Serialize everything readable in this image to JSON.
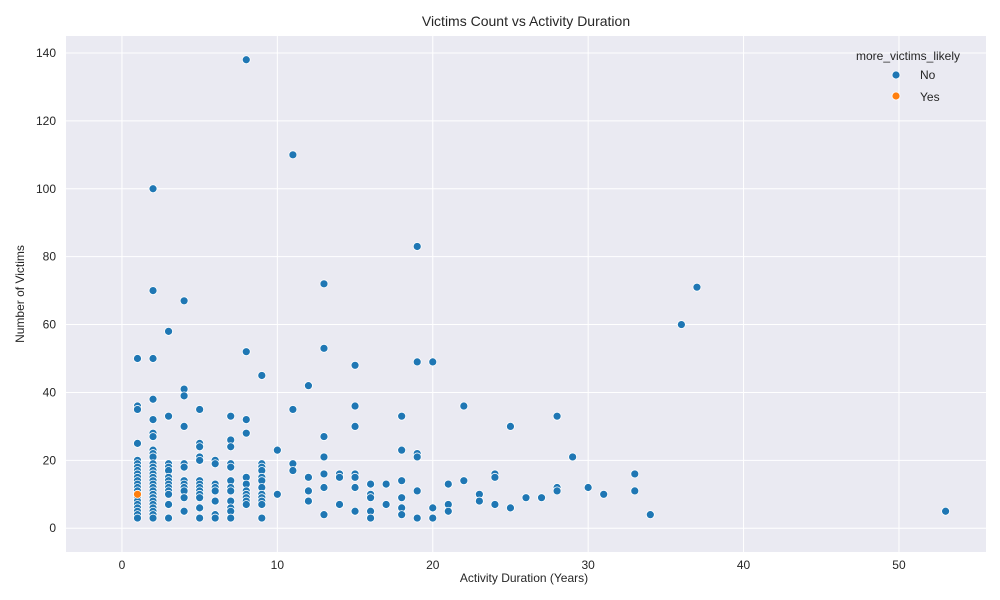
{
  "chart_data": {
    "type": "scatter",
    "title": "Victims Count vs Activity Duration",
    "xlabel": "Activity Duration (Years)",
    "ylabel": "Number of Victims",
    "xlim": [
      -3.6,
      55.6
    ],
    "ylim": [
      -7,
      145
    ],
    "xticks": [
      0,
      10,
      20,
      30,
      40,
      50
    ],
    "yticks": [
      0,
      20,
      40,
      60,
      80,
      100,
      120,
      140
    ],
    "grid": true,
    "legend": {
      "title": "more_victims_likely",
      "placement": "top-right"
    },
    "series": [
      {
        "name": "No",
        "color": "#1f77b4",
        "points": [
          [
            8,
            138
          ],
          [
            11,
            110
          ],
          [
            2,
            100
          ],
          [
            19,
            83
          ],
          [
            13,
            72
          ],
          [
            37,
            71
          ],
          [
            2,
            70
          ],
          [
            4,
            67
          ],
          [
            36,
            60
          ],
          [
            3,
            58
          ],
          [
            13,
            53
          ],
          [
            8,
            52
          ],
          [
            1,
            50
          ],
          [
            2,
            50
          ],
          [
            19,
            49
          ],
          [
            20,
            49
          ],
          [
            15,
            48
          ],
          [
            9,
            45
          ],
          [
            12,
            42
          ],
          [
            4,
            41
          ],
          [
            4,
            39
          ],
          [
            2,
            38
          ],
          [
            22,
            36
          ],
          [
            15,
            36
          ],
          [
            1,
            36
          ],
          [
            1,
            35
          ],
          [
            5,
            35
          ],
          [
            11,
            35
          ],
          [
            7,
            33
          ],
          [
            18,
            33
          ],
          [
            28,
            33
          ],
          [
            3,
            33
          ],
          [
            2,
            32
          ],
          [
            8,
            32
          ],
          [
            4,
            30
          ],
          [
            15,
            30
          ],
          [
            25,
            30
          ],
          [
            2,
            28
          ],
          [
            8,
            28
          ],
          [
            2,
            27
          ],
          [
            13,
            27
          ],
          [
            7,
            26
          ],
          [
            1,
            25
          ],
          [
            5,
            25
          ],
          [
            5,
            24
          ],
          [
            7,
            24
          ],
          [
            10,
            23
          ],
          [
            18,
            23
          ],
          [
            2,
            23
          ],
          [
            19,
            22
          ],
          [
            2,
            22
          ],
          [
            2,
            21
          ],
          [
            5,
            21
          ],
          [
            13,
            21
          ],
          [
            19,
            21
          ],
          [
            29,
            21
          ],
          [
            1,
            20
          ],
          [
            5,
            20
          ],
          [
            6,
            20
          ],
          [
            1,
            19
          ],
          [
            2,
            19
          ],
          [
            3,
            19
          ],
          [
            4,
            19
          ],
          [
            6,
            19
          ],
          [
            7,
            19
          ],
          [
            9,
            19
          ],
          [
            11,
            19
          ],
          [
            1,
            18
          ],
          [
            2,
            18
          ],
          [
            3,
            18
          ],
          [
            4,
            18
          ],
          [
            7,
            18
          ],
          [
            9,
            18
          ],
          [
            1,
            17
          ],
          [
            2,
            17
          ],
          [
            3,
            17
          ],
          [
            9,
            17
          ],
          [
            11,
            17
          ],
          [
            1,
            16
          ],
          [
            2,
            16
          ],
          [
            13,
            16
          ],
          [
            14,
            16
          ],
          [
            15,
            16
          ],
          [
            24,
            16
          ],
          [
            33,
            16
          ],
          [
            1,
            15
          ],
          [
            2,
            15
          ],
          [
            3,
            15
          ],
          [
            8,
            15
          ],
          [
            9,
            15
          ],
          [
            12,
            15
          ],
          [
            14,
            15
          ],
          [
            15,
            15
          ],
          [
            24,
            15
          ],
          [
            1,
            14
          ],
          [
            2,
            14
          ],
          [
            3,
            14
          ],
          [
            4,
            14
          ],
          [
            5,
            14
          ],
          [
            7,
            14
          ],
          [
            9,
            14
          ],
          [
            18,
            14
          ],
          [
            22,
            14
          ],
          [
            1,
            13
          ],
          [
            2,
            13
          ],
          [
            3,
            13
          ],
          [
            4,
            13
          ],
          [
            5,
            13
          ],
          [
            6,
            13
          ],
          [
            8,
            13
          ],
          [
            16,
            13
          ],
          [
            17,
            13
          ],
          [
            21,
            13
          ],
          [
            1,
            12
          ],
          [
            2,
            12
          ],
          [
            3,
            12
          ],
          [
            4,
            12
          ],
          [
            5,
            12
          ],
          [
            6,
            12
          ],
          [
            7,
            12
          ],
          [
            9,
            12
          ],
          [
            13,
            12
          ],
          [
            15,
            12
          ],
          [
            28,
            12
          ],
          [
            30,
            12
          ],
          [
            1,
            11
          ],
          [
            2,
            11
          ],
          [
            3,
            11
          ],
          [
            4,
            11
          ],
          [
            5,
            11
          ],
          [
            6,
            11
          ],
          [
            7,
            11
          ],
          [
            8,
            11
          ],
          [
            12,
            11
          ],
          [
            19,
            11
          ],
          [
            28,
            11
          ],
          [
            33,
            11
          ],
          [
            1,
            10
          ],
          [
            2,
            10
          ],
          [
            3,
            10
          ],
          [
            5,
            10
          ],
          [
            8,
            10
          ],
          [
            9,
            10
          ],
          [
            10,
            10
          ],
          [
            16,
            10
          ],
          [
            23,
            10
          ],
          [
            31,
            10
          ],
          [
            1,
            9
          ],
          [
            2,
            9
          ],
          [
            4,
            9
          ],
          [
            5,
            9
          ],
          [
            8,
            9
          ],
          [
            9,
            9
          ],
          [
            16,
            9
          ],
          [
            18,
            9
          ],
          [
            26,
            9
          ],
          [
            27,
            9
          ],
          [
            1,
            8
          ],
          [
            2,
            8
          ],
          [
            6,
            8
          ],
          [
            7,
            8
          ],
          [
            8,
            8
          ],
          [
            9,
            8
          ],
          [
            12,
            8
          ],
          [
            23,
            8
          ],
          [
            1,
            7
          ],
          [
            2,
            7
          ],
          [
            3,
            7
          ],
          [
            8,
            7
          ],
          [
            9,
            7
          ],
          [
            14,
            7
          ],
          [
            17,
            7
          ],
          [
            21,
            7
          ],
          [
            24,
            7
          ],
          [
            1,
            6
          ],
          [
            2,
            6
          ],
          [
            5,
            6
          ],
          [
            7,
            6
          ],
          [
            18,
            6
          ],
          [
            20,
            6
          ],
          [
            25,
            6
          ],
          [
            1,
            5
          ],
          [
            2,
            5
          ],
          [
            4,
            5
          ],
          [
            7,
            5
          ],
          [
            15,
            5
          ],
          [
            16,
            5
          ],
          [
            21,
            5
          ],
          [
            53,
            5
          ],
          [
            1,
            4
          ],
          [
            2,
            4
          ],
          [
            6,
            4
          ],
          [
            13,
            4
          ],
          [
            18,
            4
          ],
          [
            34,
            4
          ],
          [
            1,
            3
          ],
          [
            2,
            3
          ],
          [
            3,
            3
          ],
          [
            5,
            3
          ],
          [
            6,
            3
          ],
          [
            7,
            3
          ],
          [
            9,
            3
          ],
          [
            16,
            3
          ],
          [
            19,
            3
          ],
          [
            20,
            3
          ]
        ]
      },
      {
        "name": "Yes",
        "color": "#ff7f0e",
        "points": [
          [
            1,
            10
          ]
        ]
      }
    ]
  }
}
